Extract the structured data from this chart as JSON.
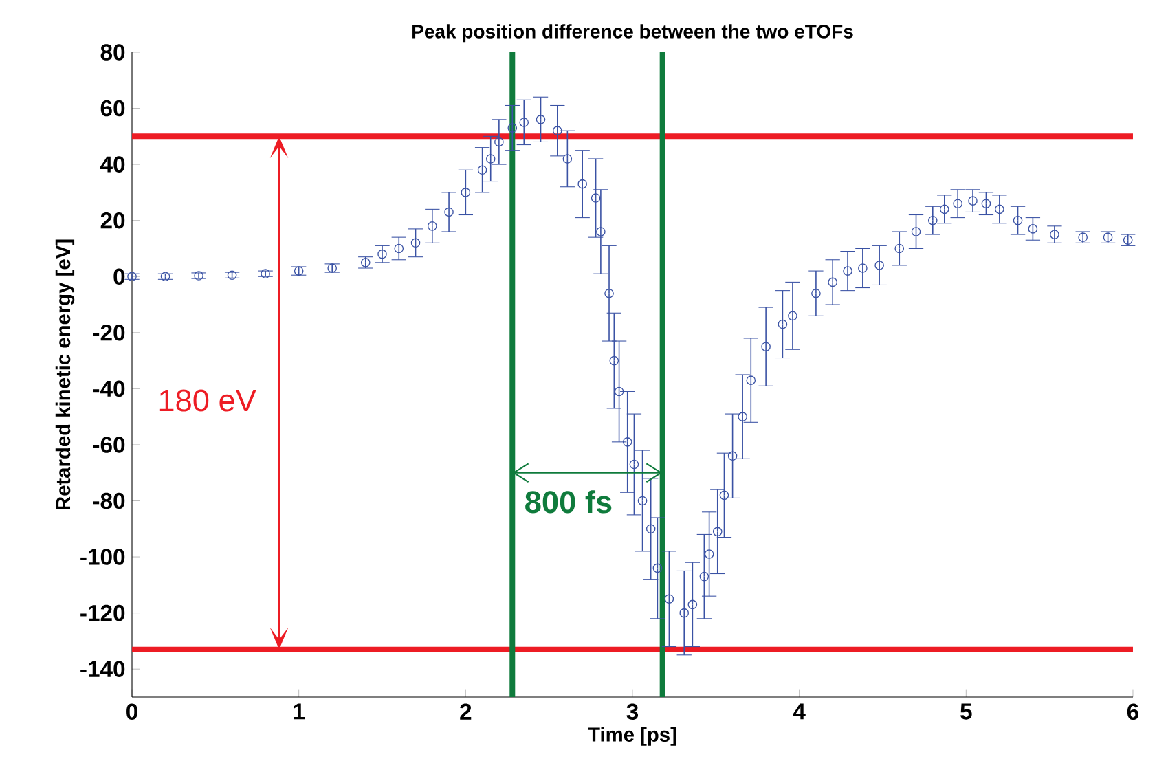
{
  "chart_data": {
    "type": "scatter",
    "title": "Peak position difference between the two eTOFs",
    "xlabel": "Time [ps]",
    "ylabel": "Retarded kinetic energy [eV]",
    "xlim": [
      0,
      6
    ],
    "ylim": [
      -150,
      80
    ],
    "xticks": [
      0,
      1,
      2,
      3,
      4,
      5,
      6
    ],
    "yticks": [
      -140,
      -120,
      -100,
      -80,
      -60,
      -40,
      -20,
      0,
      20,
      40,
      60,
      80
    ],
    "marker": "circle",
    "grid": false,
    "series": [
      {
        "color": "#3a52a4",
        "x": [
          0.0,
          0.2,
          0.4,
          0.6,
          0.8,
          1.0,
          1.2,
          1.4,
          1.5,
          1.6,
          1.7,
          1.8,
          1.9,
          2.0,
          2.1,
          2.15,
          2.2,
          2.28,
          2.35,
          2.45,
          2.55,
          2.61,
          2.7,
          2.78,
          2.81,
          2.86,
          2.89,
          2.92,
          2.97,
          3.01,
          3.06,
          3.11,
          3.15,
          3.22,
          3.31,
          3.36,
          3.43,
          3.46,
          3.51,
          3.55,
          3.6,
          3.66,
          3.71,
          3.8,
          3.9,
          3.96,
          4.1,
          4.2,
          4.29,
          4.38,
          4.48,
          4.6,
          4.7,
          4.8,
          4.87,
          4.95,
          5.04,
          5.12,
          5.2,
          5.31,
          5.4,
          5.53,
          5.7,
          5.85,
          5.97
        ],
        "values": [
          0,
          0,
          0.3,
          0.5,
          1,
          2,
          3,
          5,
          8,
          10,
          12,
          18,
          23,
          30,
          38,
          42,
          48,
          53,
          55,
          56,
          52,
          42,
          33,
          28,
          16,
          -6,
          -30,
          -41,
          -59,
          -67,
          -80,
          -90,
          -104,
          -115,
          -120,
          -117,
          -107,
          -99,
          -91,
          -78,
          -64,
          -50,
          -37,
          -25,
          -17,
          -14,
          -6,
          -2,
          2,
          3,
          4,
          10,
          16,
          20,
          24,
          26,
          27,
          26,
          24,
          20,
          17,
          15,
          14,
          14,
          13
        ],
        "errors": [
          1,
          1,
          1,
          1,
          1,
          1.5,
          1.5,
          2,
          3,
          4,
          5,
          6,
          7,
          8,
          8,
          8,
          8,
          8,
          8,
          8,
          9,
          10,
          12,
          14,
          15,
          17,
          17,
          18,
          18,
          18,
          18,
          18,
          18,
          17,
          15,
          15,
          15,
          15,
          15,
          15,
          15,
          15,
          15,
          14,
          12,
          12,
          8,
          8,
          7,
          7,
          7,
          6,
          6,
          5,
          5,
          5,
          4,
          4,
          5,
          5,
          4,
          3,
          2,
          2,
          2
        ]
      }
    ],
    "ref_lines": [
      {
        "axis": "y",
        "value": 50,
        "color": "#ed1c24"
      },
      {
        "axis": "y",
        "value": -133,
        "color": "#ed1c24"
      },
      {
        "axis": "x",
        "value": 2.28,
        "color": "#0f7b3c"
      },
      {
        "axis": "x",
        "value": 3.18,
        "color": "#0f7b3c"
      }
    ],
    "annotations": [
      "180 eV",
      {
        "text": "800 fs",
        "x": 2.28,
        "y": -70
      }
    ]
  }
}
